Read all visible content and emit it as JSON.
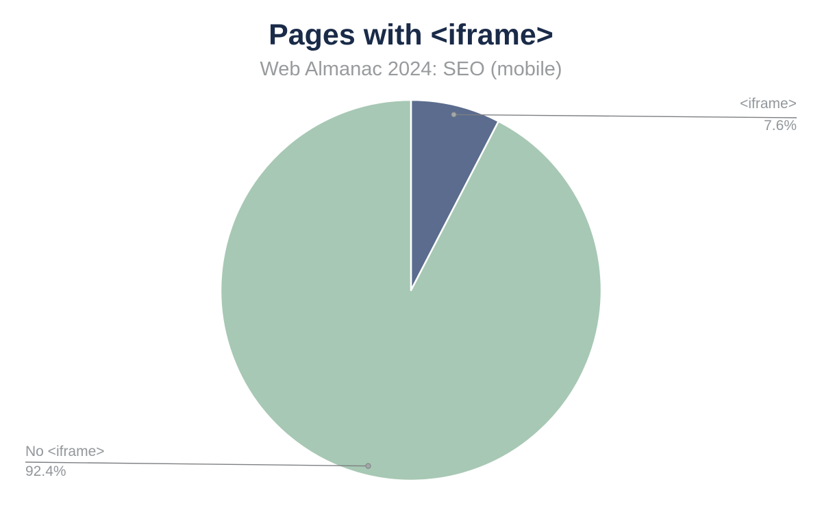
{
  "page": {
    "title": "Pages with <iframe>",
    "subtitle": "Web Almanac 2024: SEO (mobile)"
  },
  "chart_data": {
    "type": "pie",
    "title": "Pages with <iframe>",
    "subtitle": "Web Almanac 2024: SEO (mobile)",
    "slices": [
      {
        "label": "<iframe>",
        "value": 7.6,
        "display": "7.6%",
        "color": "#5b6c8e"
      },
      {
        "label": "No <iframe>",
        "value": 92.4,
        "display": "92.4%",
        "color": "#a7c8b4"
      }
    ],
    "start_angle_deg": 0,
    "direction": "clockwise",
    "legend_position": "callout-labels",
    "background_color": "#ffffff",
    "separator_color": "#ffffff",
    "title_color": "#1a2b49",
    "subtitle_color": "#989b9d",
    "label_text_color": "#92979b",
    "callout_line_color": "#7c7f82",
    "callout_dot_color": "#a4a8aa"
  }
}
